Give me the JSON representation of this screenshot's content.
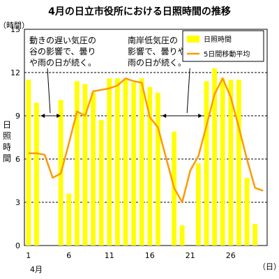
{
  "chart_data": {
    "type": "bar",
    "title": "4月の日立市役所における日照時間の推移",
    "ylabel_unit": "（時間）",
    "ylabel": "日照時間",
    "xlabel_unit": "（日）",
    "month_label": "4月",
    "ylim": [
      0,
      15
    ],
    "yticks": [
      0,
      3,
      6,
      9,
      12,
      15
    ],
    "xlim": [
      1,
      30
    ],
    "xticks": [
      1,
      6,
      11,
      16,
      21,
      26
    ],
    "grid": "dashed-horizontal",
    "legend_position": "top-right",
    "x": [
      1,
      2,
      3,
      4,
      5,
      6,
      7,
      8,
      9,
      10,
      11,
      12,
      13,
      14,
      15,
      16,
      17,
      18,
      19,
      20,
      21,
      22,
      23,
      24,
      25,
      26,
      27,
      28,
      29,
      30
    ],
    "series": [
      {
        "name": "日照時間",
        "kind": "bar",
        "color": "#ffff00",
        "values": [
          11.5,
          9.9,
          0,
          0,
          10.1,
          3.6,
          11.4,
          11.2,
          10.6,
          8.7,
          11.6,
          11.6,
          11.5,
          11.3,
          11.6,
          11.0,
          10.6,
          0,
          7.9,
          1.4,
          0,
          5.7,
          11.4,
          12.3,
          11.6,
          11.5,
          11.5,
          4.7,
          1.5,
          0
        ]
      },
      {
        "name": "5日間移動平均",
        "kind": "line",
        "color": "#ff9900",
        "values": [
          6.4,
          6.4,
          6.3,
          4.7,
          5.0,
          7.1,
          9.3,
          9.0,
          10.7,
          10.8,
          10.9,
          11.1,
          11.6,
          11.4,
          11.3,
          8.9,
          8.2,
          6.1,
          4.0,
          3.0,
          5.2,
          6.2,
          8.3,
          10.5,
          11.6,
          10.3,
          8.2,
          6.0,
          4.0,
          3.8
        ]
      }
    ],
    "annotations": [
      {
        "lines": [
          "動きの遅い気圧の",
          "谷の影響で、曇り",
          "や雨の日が続く。"
        ],
        "arrow_from": 2.5,
        "arrow_to": 5,
        "arrow_y": 9.0
      },
      {
        "lines": [
          "南岸低気圧の",
          "影響で、曇りや",
          "雨の日が続く。"
        ],
        "arrow_from": 17.5,
        "arrow_to": 22.5,
        "arrow_y": 9.0
      }
    ]
  }
}
